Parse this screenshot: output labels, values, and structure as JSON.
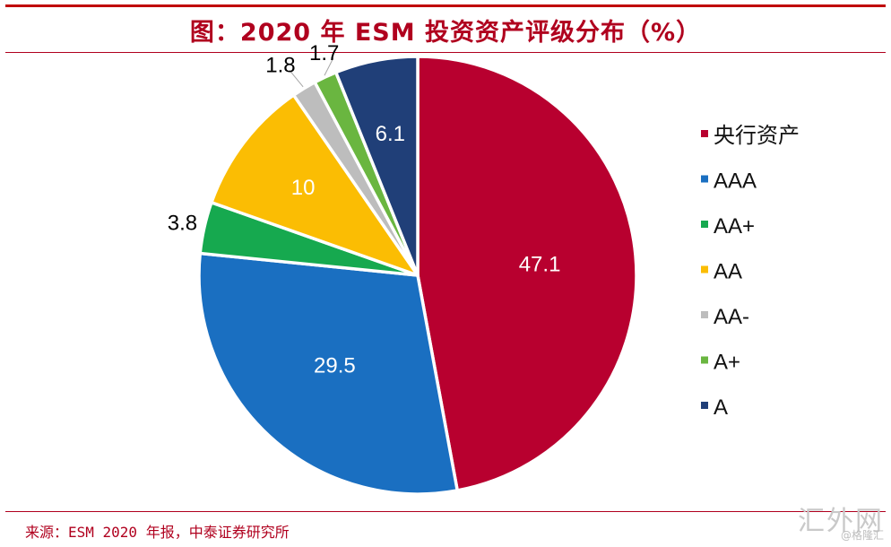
{
  "title": "图：2020 年 ESM 投资资产评级分布（%）",
  "source": "来源：ESM 2020 年报，中泰证券研究所",
  "watermark": "汇外网",
  "watermark_sub": "@格隆汇",
  "chart_data": {
    "type": "pie",
    "title": "图：2020 年 ESM 投资资产评级分布（%）",
    "start": "12 o'clock, clockwise",
    "legend_position": "right",
    "slices": [
      {
        "name": "央行资产",
        "value": 47.1,
        "color": "#b8002f"
      },
      {
        "name": "AAA",
        "value": 29.5,
        "color": "#1a6fc1"
      },
      {
        "name": "AA+",
        "value": 3.8,
        "color": "#16a94f"
      },
      {
        "name": "AA",
        "value": 10,
        "color": "#fbbd03"
      },
      {
        "name": "AA-",
        "value": 1.8,
        "color": "#bdbdbd"
      },
      {
        "name": "A+",
        "value": 1.7,
        "color": "#6ab640"
      },
      {
        "name": "A",
        "value": 6.1,
        "color": "#203f78"
      }
    ]
  }
}
